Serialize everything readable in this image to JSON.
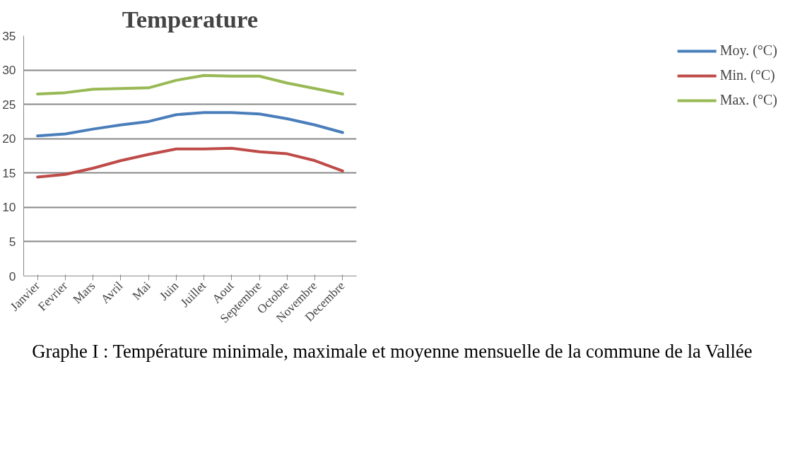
{
  "chart_data": {
    "type": "line",
    "title": "Temperature",
    "categories": [
      "Janvier",
      "Fevrier",
      "Mars",
      "Avril",
      "Mai",
      "Juin",
      "Juillet",
      "Aout",
      "Septembre",
      "Octobre",
      "Novembre",
      "Decembre"
    ],
    "series": [
      {
        "name": "Moy. (°C)",
        "color": "#4a7ebb",
        "values": [
          20.4,
          20.7,
          21.4,
          22.0,
          22.5,
          23.5,
          23.8,
          23.8,
          23.6,
          22.9,
          22.0,
          20.9
        ]
      },
      {
        "name": "Min. (°C)",
        "color": "#be4b48",
        "values": [
          14.4,
          14.8,
          15.7,
          16.8,
          17.7,
          18.5,
          18.5,
          18.6,
          18.1,
          17.8,
          16.8,
          15.3
        ]
      },
      {
        "name": "Max. (°C)",
        "color": "#98b954",
        "values": [
          26.5,
          26.7,
          27.2,
          27.3,
          27.4,
          28.5,
          29.2,
          29.1,
          29.1,
          28.1,
          27.3,
          26.5
        ]
      }
    ],
    "ylim": [
      0,
      35
    ],
    "yticks": [
      0,
      5,
      10,
      15,
      20,
      25,
      30,
      35
    ],
    "grid": "y",
    "legend": "right",
    "marker": "none",
    "line_style": "solid",
    "annotations": [
      "Graphe I : Température minimale, maximale et moyenne mensuelle de la commune de la Vallée"
    ]
  }
}
